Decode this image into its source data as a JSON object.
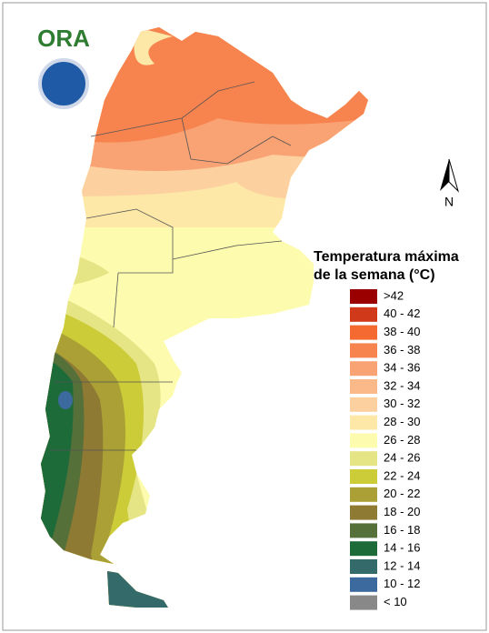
{
  "logo": {
    "text": "ORA"
  },
  "north_label": "N",
  "legend": {
    "title_lines": [
      "Temperatura máxima",
      "de la semana (°C)"
    ],
    "items": [
      {
        "label": ">42",
        "color": "#9b0000"
      },
      {
        "label": "40 - 42",
        "color": "#d03a1a"
      },
      {
        "label": "38 - 40",
        "color": "#f46a30"
      },
      {
        "label": "36 - 38",
        "color": "#f7834f"
      },
      {
        "label": "34 - 36",
        "color": "#f9a273"
      },
      {
        "label": "32 - 34",
        "color": "#fbb98a"
      },
      {
        "label": "30 - 32",
        "color": "#fcd09f"
      },
      {
        "label": "28 - 30",
        "color": "#fde8a8"
      },
      {
        "label": "26 - 28",
        "color": "#fdfbae"
      },
      {
        "label": "24 - 26",
        "color": "#e5e585"
      },
      {
        "label": "22 - 24",
        "color": "#cccc38"
      },
      {
        "label": "20 - 22",
        "color": "#aaa035"
      },
      {
        "label": "18 - 20",
        "color": "#8f7a34"
      },
      {
        "label": "16 - 18",
        "color": "#56703a"
      },
      {
        "label": "14 - 16",
        "color": "#1e6b3a"
      },
      {
        "label": "12 - 14",
        "color": "#356a6b"
      },
      {
        "label": "10 - 12",
        "color": "#3c6a9e"
      },
      {
        "label": "< 10",
        "color": "#888888"
      }
    ]
  }
}
